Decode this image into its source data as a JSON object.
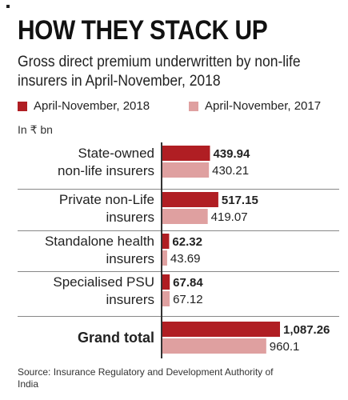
{
  "title": "HOW THEY STACK UP",
  "subtitle": "Gross direct premium underwritten by non-life insurers in April-November, 2018",
  "unit": "In ₹ bn",
  "source": "Source: Insurance Regulatory and Development Authority of India",
  "colors": {
    "series_2018": "#b01e23",
    "series_2017": "#dfa0a0",
    "axis": "#333333"
  },
  "chart_data": {
    "type": "bar",
    "orientation": "horizontal",
    "title": "HOW THEY STACK UP",
    "subtitle": "Gross direct premium underwritten by non-life insurers in April-November, 2018",
    "unit": "In ₹ bn",
    "categories": [
      [
        "State-owned",
        "non-life insurers"
      ],
      [
        "Private non-Life",
        "insurers"
      ],
      [
        "Standalone health",
        "insurers"
      ],
      [
        "Specialised PSU",
        "insurers"
      ],
      [
        "Grand total"
      ]
    ],
    "series": [
      {
        "name": "April-November, 2018",
        "values": [
          439.94,
          517.15,
          62.32,
          67.84,
          1087.26
        ],
        "labels": [
          "439.94",
          "517.15",
          "62.32",
          "67.84",
          "1,087.26"
        ]
      },
      {
        "name": "April-November, 2017",
        "values": [
          430.21,
          419.07,
          43.69,
          67.12,
          960.1
        ],
        "labels": [
          "430.21",
          "419.07",
          "43.69",
          "67.12",
          "960.1"
        ]
      }
    ],
    "bold_categories": [
      false,
      false,
      false,
      false,
      true
    ],
    "xlim": [
      0,
      1280
    ],
    "grid": false,
    "legend": "top"
  }
}
